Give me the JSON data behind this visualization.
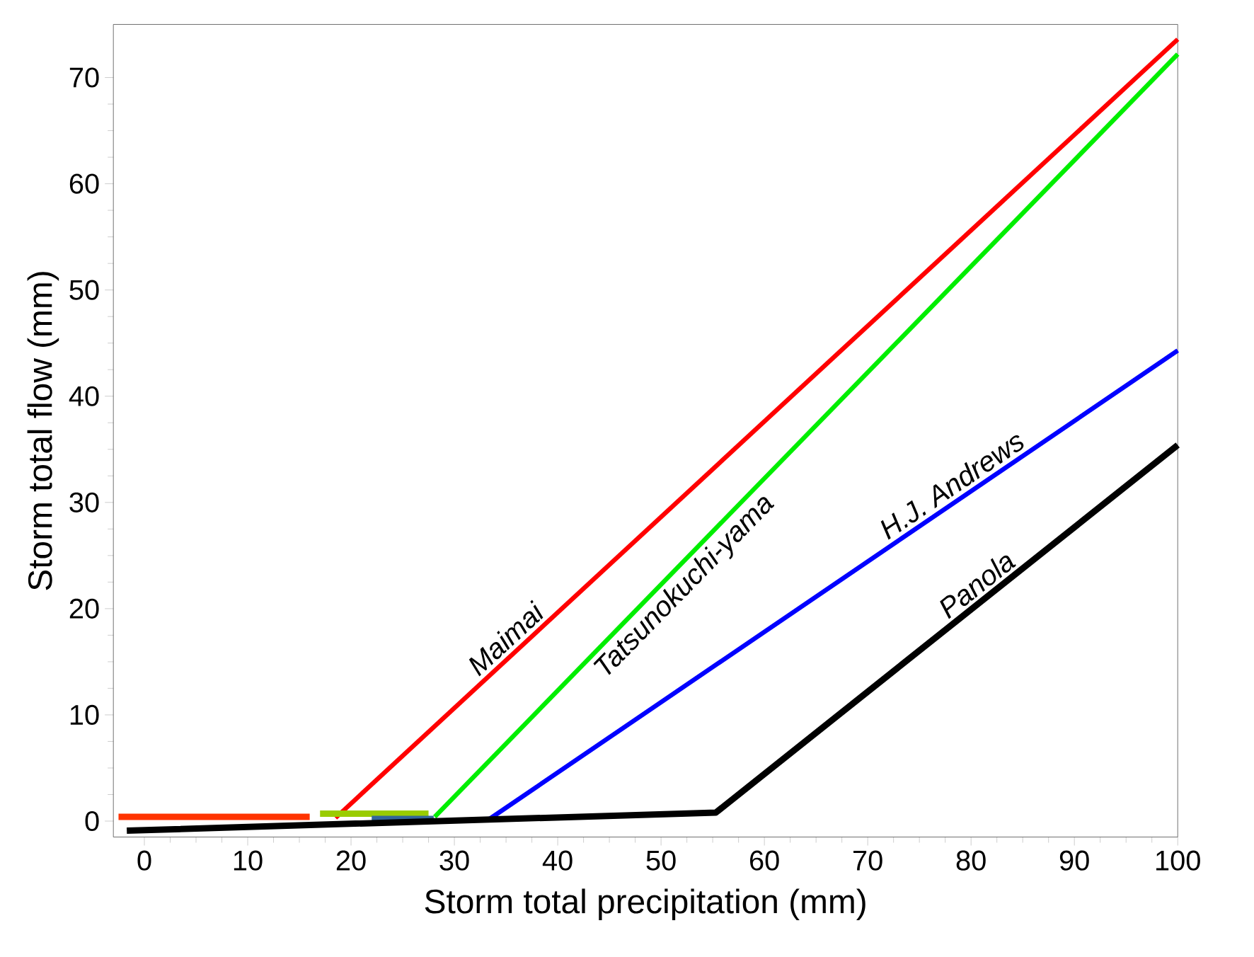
{
  "chart_data": {
    "type": "line",
    "xlabel": "Storm total precipitation (mm)",
    "ylabel": "Storm total flow (mm)",
    "xlim": [
      -3,
      100
    ],
    "ylim": [
      -1.5,
      75
    ],
    "xticks": [
      0,
      10,
      20,
      30,
      40,
      50,
      60,
      70,
      80,
      90,
      100
    ],
    "yticks": [
      0,
      10,
      20,
      30,
      40,
      50,
      60,
      70
    ],
    "grid": false,
    "legend": false,
    "marker": "none",
    "line_style": "solid",
    "series": [
      {
        "color": "#ff3300",
        "x": [
          -2.5,
          16
        ],
        "values": [
          0.4,
          0.4
        ]
      },
      {
        "color": "#ff0000",
        "x": [
          18.5,
          100
        ],
        "values": [
          0.3,
          73.6
        ]
      },
      {
        "color": "#99cc00",
        "x": [
          17,
          27.5
        ],
        "values": [
          0.7,
          0.7
        ]
      },
      {
        "color": "#00ee00",
        "x": [
          28.1,
          100
        ],
        "values": [
          0.4,
          72.2
        ]
      },
      {
        "color": "#336699",
        "x": [
          22,
          28
        ],
        "values": [
          0.2,
          0.2
        ]
      },
      {
        "color": "#0000ff",
        "x": [
          33.4,
          100
        ],
        "values": [
          0.2,
          44.3
        ]
      },
      {
        "color": "#000000",
        "x": [
          -1.7,
          55.3,
          100
        ],
        "values": [
          -0.9,
          0.8,
          35.4
        ]
      }
    ],
    "annotations": [
      {
        "text": "Maimai",
        "x": 36,
        "y": 16.04
      },
      {
        "text": "Tatsunokuchi-yama",
        "x": 51,
        "y": 23.3
      },
      {
        "text": "H.J. Andrews",
        "x": 79,
        "y": 30.4
      },
      {
        "text": "Panola",
        "x": 81.5,
        "y": 21.1
      }
    ]
  }
}
